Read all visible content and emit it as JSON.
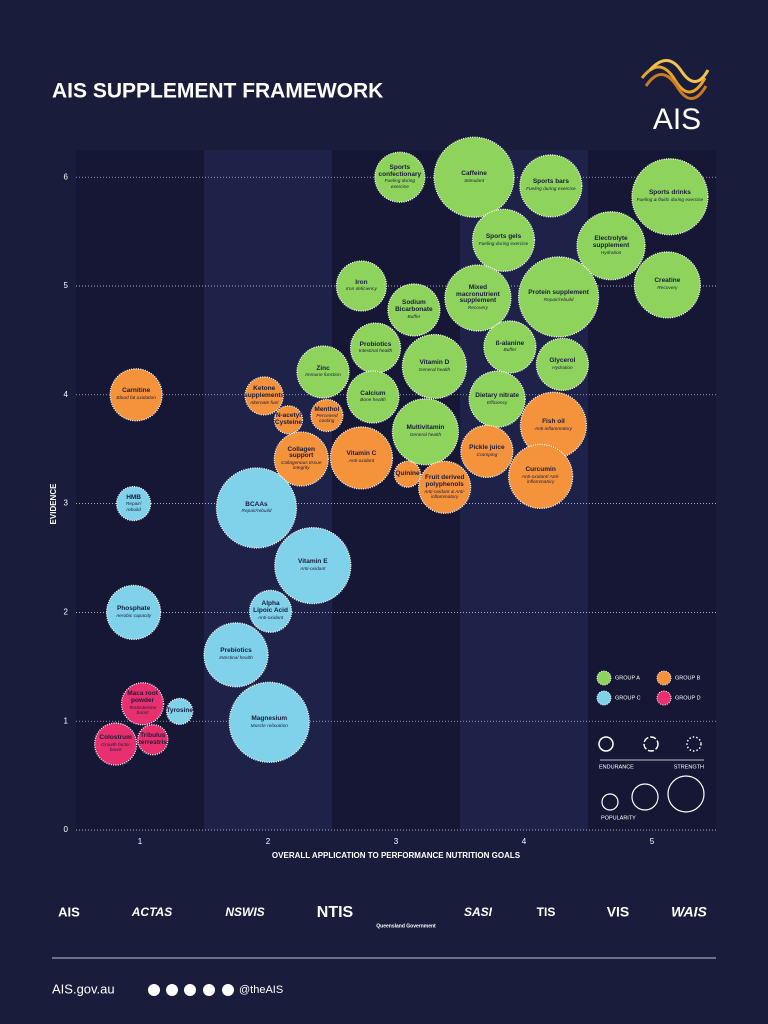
{
  "header": {
    "title": "AIS SUPPLEMENT FRAMEWORK",
    "logo": "AIS"
  },
  "chart_data": {
    "type": "bubble",
    "x_label": "OVERALL APPLICATION TO PERFORMANCE NUTRITION GOALS",
    "y_label": "EVIDENCE",
    "xlim": [
      0.5,
      5.5
    ],
    "xticks": [
      1,
      2,
      3,
      4,
      5
    ],
    "ylim": [
      0,
      6.25
    ],
    "yticks": [
      0,
      1,
      2,
      3,
      4,
      5,
      6
    ],
    "grid": true,
    "border_legend": {
      "left": "ENDURANCE",
      "right": "STRENGTH"
    },
    "size_legend": "POPULARITY",
    "series": [
      {
        "name": "GROUP A",
        "color": "#8ed35c",
        "labels": [
          "Sports confectionary",
          "Caffeine",
          "Sports bars",
          "Sports drinks",
          "Sports gels",
          "Electrolyte supplement",
          "Iron",
          "Sodium Bicarbonate",
          "Mixed macronutrient supplement",
          "Protein supplement",
          "Creatine",
          "Probiotics",
          "ß-alanine",
          "Zinc",
          "Vitamin D",
          "Glycerol",
          "Calcium",
          "Dietary nitrate",
          "Multivitamin"
        ],
        "notes": [
          "Fueling during exercise",
          "Stimulant",
          "Fueling during exercise",
          "Fueling & fluids during exercise",
          "Fueling during exercise",
          "Hydration",
          "Iron deficiency",
          "Buffer",
          "Recovery",
          "Repair/rebuild",
          "Recovery",
          "Intestinal health",
          "Buffer",
          "Immune function",
          "General health",
          "Hydration",
          "Bone health",
          "Efficiency",
          "General health"
        ],
        "x": [
          3.03,
          3.61,
          4.21,
          5.14,
          3.84,
          4.68,
          2.73,
          3.14,
          3.64,
          4.27,
          5.12,
          2.84,
          3.89,
          2.43,
          3.3,
          4.3,
          2.82,
          3.79,
          3.23
        ],
        "values": [
          6.0,
          6.0,
          5.92,
          5.82,
          5.42,
          5.37,
          5.0,
          4.78,
          4.89,
          4.9,
          5.01,
          4.43,
          4.44,
          4.21,
          4.26,
          4.28,
          3.98,
          3.96,
          3.66
        ],
        "sizes": [
          25,
          40,
          31,
          38,
          31,
          34,
          25,
          26,
          33,
          40,
          33,
          25,
          26,
          26,
          32,
          26,
          26,
          28,
          33
        ]
      },
      {
        "name": "GROUP B",
        "color": "#f5923c",
        "labels": [
          "Carnitine",
          "Ketone supplements",
          "Menthol",
          "N-acetyl Cysteine",
          "Collagen support",
          "Vitamin C",
          "Fish oil",
          "Pickle juice",
          "Quinine",
          "Fruit derived polyphenols",
          "Curcumin"
        ],
        "notes": [
          "Blood fat oxidation",
          "Alternate fuel",
          "Perceived cooling",
          null,
          "Collagenous tissue integrity",
          "Anti-oxidant",
          "Anti-inflammatory",
          "Cramping",
          null,
          "Anti-oxidant & Anti-inflammatory",
          "Anti-oxidant/ Anti-inflammatory"
        ],
        "x": [
          0.97,
          1.97,
          2.46,
          2.16,
          2.26,
          2.73,
          4.23,
          3.71,
          3.09,
          3.38,
          4.13
        ],
        "values": [
          4.0,
          3.99,
          3.81,
          3.77,
          3.41,
          3.42,
          3.72,
          3.48,
          3.27,
          3.15,
          3.25
        ],
        "sizes": [
          26,
          19,
          16,
          14,
          27,
          31,
          33,
          26,
          13,
          26,
          32
        ]
      },
      {
        "name": "GROUP C",
        "color": "#7fd2ea",
        "labels": [
          "HMB",
          "BCAAs",
          "Vitamin E",
          "Phosphate",
          "Alpha Lipoic Acid",
          "Prebiotics",
          "Tyrosine",
          "Magnesium"
        ],
        "notes": [
          "Repair/ rebuild",
          "Repair/rebuild",
          "Anti-oxidant",
          "Aerobic capacity",
          "Anti-oxidant",
          "Intestinal health",
          null,
          "Muscle relaxation"
        ],
        "x": [
          0.95,
          1.91,
          2.35,
          0.95,
          2.02,
          1.75,
          1.31,
          2.01
        ],
        "values": [
          3.0,
          2.96,
          2.43,
          2.0,
          2.01,
          1.61,
          1.09,
          0.99
        ],
        "sizes": [
          17,
          40,
          38,
          27,
          21,
          32,
          13,
          40
        ]
      },
      {
        "name": "GROUP D",
        "color": "#e8306e",
        "labels": [
          "Maca root powder",
          "Colostrum",
          "Tribulus terrestris"
        ],
        "notes": [
          "Testosterone boost",
          "Growth factor boost",
          null
        ],
        "x": [
          1.02,
          0.81,
          1.1
        ],
        "values": [
          1.16,
          0.79,
          0.83
        ],
        "sizes": [
          21,
          21,
          15
        ]
      }
    ]
  },
  "partners": [
    "AIS",
    "ACTAS",
    "NSWIS",
    "NTIS",
    "Queensland Government",
    "SASI",
    "TIS",
    "VIS",
    "WAIS"
  ],
  "footer": {
    "website": "AIS.gov.au",
    "handle": "@theAIS"
  }
}
